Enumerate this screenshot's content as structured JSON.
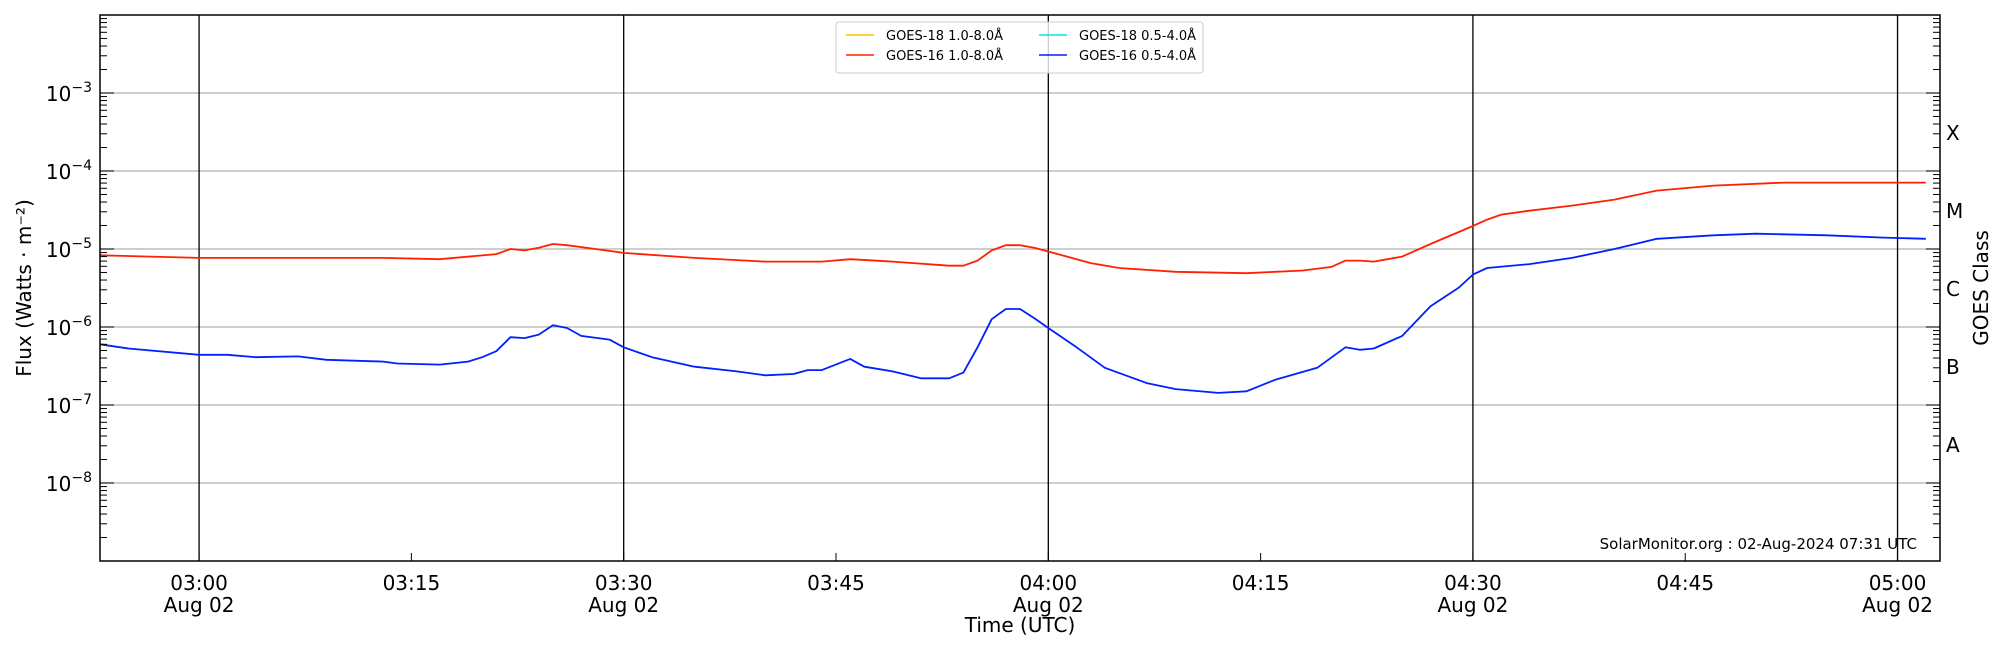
{
  "chart_data": {
    "type": "line",
    "title": "",
    "xlabel": "Time (UTC)",
    "ylabel": "Flux (Watts · m⁻²)",
    "y2label": "GOES Class",
    "yscale": "log",
    "xlim": [
      "02:53",
      "05:03"
    ],
    "ylim": [
      1e-09,
      0.01
    ],
    "grid": "y-major decades (gray), x half-hour lines (black)",
    "legend_position": "top-center",
    "y_ticks": [
      {
        "value": 0.001,
        "base": "10",
        "exp": "−3"
      },
      {
        "value": 0.0001,
        "base": "10",
        "exp": "−4"
      },
      {
        "value": 1e-05,
        "base": "10",
        "exp": "−5"
      },
      {
        "value": 1e-06,
        "base": "10",
        "exp": "−6"
      },
      {
        "value": 1e-07,
        "base": "10",
        "exp": "−7"
      },
      {
        "value": 1e-08,
        "base": "10",
        "exp": "−8"
      }
    ],
    "x_ticks": [
      {
        "time": "03:00",
        "label": "03:00",
        "date": "Aug 02"
      },
      {
        "time": "03:15",
        "label": "03:15",
        "date": ""
      },
      {
        "time": "03:30",
        "label": "03:30",
        "date": "Aug 02"
      },
      {
        "time": "03:45",
        "label": "03:45",
        "date": ""
      },
      {
        "time": "04:00",
        "label": "04:00",
        "date": "Aug 02"
      },
      {
        "time": "04:15",
        "label": "04:15",
        "date": ""
      },
      {
        "time": "04:30",
        "label": "04:30",
        "date": "Aug 02"
      },
      {
        "time": "04:45",
        "label": "04:45",
        "date": ""
      },
      {
        "time": "05:00",
        "label": "05:00",
        "date": "Aug 02"
      }
    ],
    "class_labels": [
      {
        "label": "X",
        "value": 0.000316
      },
      {
        "label": "M",
        "value": 3.16e-05
      },
      {
        "label": "C",
        "value": 3.16e-06
      },
      {
        "label": "B",
        "value": 3.16e-07
      },
      {
        "label": "A",
        "value": 3.16e-08
      }
    ],
    "series": [
      {
        "name": "GOES-18 1.0-8.0Å",
        "color": "#ffc000",
        "x": [],
        "values": []
      },
      {
        "name": "GOES-18 0.5-4.0Å",
        "color": "#00e5e5",
        "x": [],
        "values": []
      },
      {
        "name": "GOES-16 1.0-8.0Å",
        "color": "#ff2000",
        "x": [
          "02:53",
          "03:00",
          "03:13",
          "03:17",
          "03:21",
          "03:22",
          "03:23",
          "03:24",
          "03:25",
          "03:26",
          "03:28",
          "03:30",
          "03:35",
          "03:40",
          "03:44",
          "03:46",
          "03:49",
          "03:53",
          "03:54",
          "03:55",
          "03:56",
          "03:57",
          "03:58",
          "03:59",
          "04:00",
          "04:03",
          "04:05",
          "04:09",
          "04:14",
          "04:18",
          "04:20",
          "04:21",
          "04:22",
          "04:23",
          "04:25",
          "04:27",
          "04:30",
          "04:31",
          "04:32",
          "04:34",
          "04:37",
          "04:40",
          "04:43",
          "04:47",
          "04:52",
          "04:57",
          "05:02"
        ],
        "values": [
          8.3e-06,
          7.7e-06,
          7.7e-06,
          7.4e-06,
          8.6e-06,
          1e-05,
          9.6e-06,
          1.04e-05,
          1.16e-05,
          1.12e-05,
          1e-05,
          8.9e-06,
          7.7e-06,
          6.9e-06,
          6.9e-06,
          7.4e-06,
          6.9e-06,
          6.1e-06,
          6.1e-06,
          7.1e-06,
          9.6e-06,
          1.12e-05,
          1.12e-05,
          1.04e-05,
          9.3e-06,
          6.6e-06,
          5.7e-06,
          5.1e-06,
          4.9e-06,
          5.3e-06,
          5.9e-06,
          7.1e-06,
          7.1e-06,
          6.9e-06,
          8e-06,
          1.16e-05,
          1.97e-05,
          2.38e-05,
          2.76e-05,
          3.1e-05,
          3.6e-05,
          4.3e-05,
          5.6e-05,
          6.5e-05,
          7.1e-05,
          7.1e-05,
          7.1e-05
        ]
      },
      {
        "name": "GOES-16 0.5-4.0Å",
        "color": "#0020ff",
        "x": [
          "02:53",
          "02:55",
          "03:00",
          "03:02",
          "03:04",
          "03:07",
          "03:09",
          "03:13",
          "03:14",
          "03:17",
          "03:19",
          "03:20",
          "03:21",
          "03:22",
          "03:23",
          "03:24",
          "03:25",
          "03:26",
          "03:27",
          "03:29",
          "03:30",
          "03:32",
          "03:35",
          "03:38",
          "03:40",
          "03:42",
          "03:43",
          "03:44",
          "03:46",
          "03:47",
          "03:49",
          "03:51",
          "03:53",
          "03:54",
          "03:55",
          "03:56",
          "03:57",
          "03:58",
          "03:59",
          "04:00",
          "04:02",
          "04:04",
          "04:07",
          "04:09",
          "04:12",
          "04:14",
          "04:16",
          "04:19",
          "04:21",
          "04:22",
          "04:23",
          "04:25",
          "04:27",
          "04:29",
          "04:30",
          "04:31",
          "04:34",
          "04:37",
          "04:40",
          "04:43",
          "04:47",
          "04:50",
          "04:55",
          "04:59",
          "05:02"
        ],
        "values": [
          6e-07,
          5.3e-07,
          4.4e-07,
          4.4e-07,
          4.1e-07,
          4.2e-07,
          3.8e-07,
          3.6e-07,
          3.4e-07,
          3.3e-07,
          3.6e-07,
          4.1e-07,
          4.9e-07,
          7.4e-07,
          7.2e-07,
          8e-07,
          1.05e-06,
          9.7e-07,
          7.7e-07,
          6.9e-07,
          5.5e-07,
          4.1e-07,
          3.1e-07,
          2.7e-07,
          2.4e-07,
          2.5e-07,
          2.8e-07,
          2.8e-07,
          3.9e-07,
          3.1e-07,
          2.7e-07,
          2.2e-07,
          2.2e-07,
          2.6e-07,
          5.5e-07,
          1.26e-06,
          1.7e-06,
          1.7e-06,
          1.3e-06,
          9.7e-07,
          5.5e-07,
          3e-07,
          1.9e-07,
          1.6e-07,
          1.43e-07,
          1.5e-07,
          2.1e-07,
          3e-07,
          5.5e-07,
          5.1e-07,
          5.3e-07,
          7.7e-07,
          1.84e-06,
          3.2e-06,
          4.7e-06,
          5.7e-06,
          6.4e-06,
          7.7e-06,
          1e-05,
          1.35e-05,
          1.5e-05,
          1.57e-05,
          1.5e-05,
          1.4e-05,
          1.35e-05
        ]
      }
    ],
    "annotation": "SolarMonitor.org : 02-Aug-2024 07:31 UTC"
  }
}
